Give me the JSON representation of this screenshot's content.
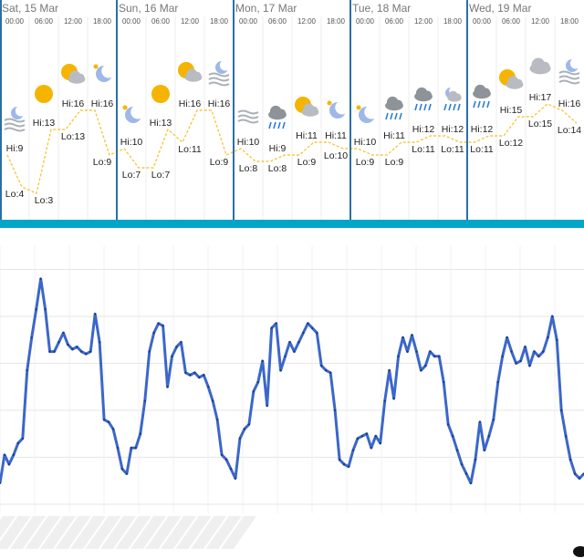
{
  "forecast": {
    "days": [
      {
        "label": "Sat, 15 Mar",
        "times": [
          "00:00",
          "06:00",
          "12:00",
          "18:00"
        ],
        "periods": [
          {
            "hi": 9,
            "hi_label": "Hi:9",
            "lo": 4,
            "lo_label": "Lo:4"
          },
          {
            "hi": 13,
            "hi_label": "Hi:13",
            "lo": 3,
            "lo_label": "Lo:3"
          },
          {
            "hi": 16,
            "hi_label": "Hi:16",
            "lo": 13,
            "lo_label": "Lo:13"
          },
          {
            "hi": 16,
            "hi_label": "Hi:16",
            "lo": 9,
            "lo_label": "Lo:9"
          }
        ]
      },
      {
        "label": "Sun, 16 Mar",
        "times": [
          "00:00",
          "06:00",
          "12:00",
          "18:00"
        ],
        "periods": [
          {
            "hi": 10,
            "hi_label": "Hi:10",
            "lo": 7,
            "lo_label": "Lo:7"
          },
          {
            "hi": 13,
            "hi_label": "Hi:13",
            "lo": 7,
            "lo_label": "Lo:7"
          },
          {
            "hi": 16,
            "hi_label": "Hi:16",
            "lo": 11,
            "lo_label": "Lo:11"
          },
          {
            "hi": 16,
            "hi_label": "Hi:16",
            "lo": 9,
            "lo_label": "Lo:9"
          }
        ]
      },
      {
        "label": "Mon, 17 Mar",
        "times": [
          "00:00",
          "06:00",
          "12:00",
          "18:00"
        ],
        "periods": [
          {
            "hi": 10,
            "hi_label": "Hi:10",
            "lo": 8,
            "lo_label": "Lo:8"
          },
          {
            "hi": 9,
            "hi_label": "Hi:9",
            "lo": 8,
            "lo_label": "Lo:8"
          },
          {
            "hi": 11,
            "hi_label": "Hi:11",
            "lo": 9,
            "lo_label": "Lo:9"
          },
          {
            "hi": 11,
            "hi_label": "Hi:11",
            "lo": 10,
            "lo_label": "Lo:10"
          }
        ]
      },
      {
        "label": "Tue, 18 Mar",
        "times": [
          "00:00",
          "06:00",
          "12:00",
          "18:00"
        ],
        "periods": [
          {
            "hi": 10,
            "hi_label": "Hi:10",
            "lo": 9,
            "lo_label": "Lo:9"
          },
          {
            "hi": 11,
            "hi_label": "Hi:11",
            "lo": 9,
            "lo_label": "Lo:9"
          },
          {
            "hi": 12,
            "hi_label": "Hi:12",
            "lo": 11,
            "lo_label": "Lo:11"
          },
          {
            "hi": 12,
            "hi_label": "Hi:12",
            "lo": 11,
            "lo_label": "Lo:11"
          }
        ]
      },
      {
        "label": "Wed, 19 Mar",
        "times": [
          "00:00",
          "06:00",
          "12:00",
          "18:00"
        ],
        "periods": [
          {
            "hi": 12,
            "hi_label": "Hi:12",
            "lo": 11,
            "lo_label": "Lo:11"
          },
          {
            "hi": 15,
            "hi_label": "Hi:15",
            "lo": 12,
            "lo_label": "Lo:12"
          },
          {
            "hi": 17,
            "hi_label": "Hi:17",
            "lo": 15,
            "lo_label": "Lo:15"
          },
          {
            "hi": 16,
            "hi_label": "Hi:16",
            "lo": 14,
            "lo_label": "Lo:14"
          }
        ]
      }
    ]
  },
  "chart_data": {
    "type": "line",
    "color": "#3b67c9",
    "grid": true,
    "ylim": [
      0,
      110
    ],
    "yticks": [
      0,
      20,
      40,
      60,
      80,
      100
    ],
    "values": [
      9,
      21,
      17,
      21,
      26,
      28,
      57,
      71,
      83,
      96,
      83,
      65,
      65,
      69,
      73,
      68,
      66,
      67,
      65,
      64,
      65,
      81,
      69,
      36,
      35,
      32,
      24,
      15,
      13,
      24,
      24,
      30,
      44,
      65,
      73,
      77,
      76,
      50,
      63,
      67,
      69,
      56,
      55,
      56,
      54,
      55,
      50,
      44,
      36,
      21,
      19,
      15,
      11,
      28,
      32,
      34,
      48,
      52,
      61,
      42,
      75,
      77,
      57,
      63,
      69,
      65,
      69,
      73,
      77,
      75,
      73,
      59,
      57,
      56,
      40,
      19,
      17,
      16,
      23,
      28,
      29,
      30,
      24,
      29,
      26,
      44,
      57,
      45,
      63,
      71,
      65,
      72,
      65,
      57,
      59,
      65,
      63,
      63,
      52,
      34,
      29,
      23,
      17,
      13,
      9,
      19,
      35,
      23,
      29,
      36,
      52,
      63,
      71,
      65,
      60,
      61,
      67,
      59,
      65,
      63,
      65,
      71,
      80,
      70,
      40,
      29,
      19,
      13,
      11,
      13
    ]
  }
}
